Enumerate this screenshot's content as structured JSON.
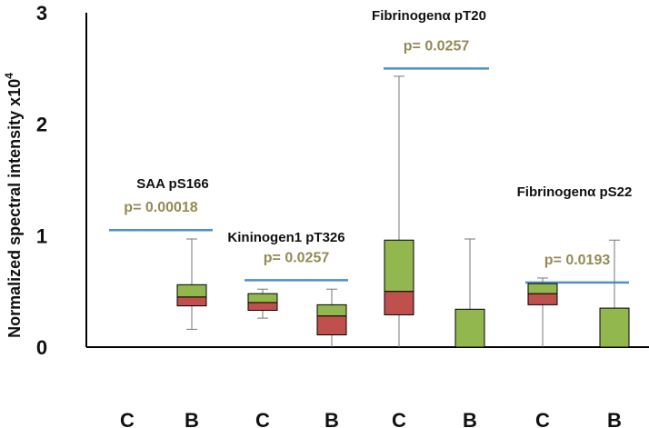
{
  "chart_data": {
    "type": "boxplot",
    "ylabel": "Normalized spectral intensity  x10",
    "ylabel_exponent": "4",
    "ylim": [
      0,
      3
    ],
    "yticks": [
      0,
      1,
      2,
      3
    ],
    "colors": {
      "upper_box": "#92b74f",
      "lower_box": "#c0504d",
      "pvalue_line": "#4f8fcf",
      "pvalue_text": "#948a54"
    },
    "groups": [
      {
        "label": "SAA pS166",
        "p_value": "p= 0.00018",
        "boxes": [
          {
            "category": "C",
            "min": 0,
            "q1": 0,
            "median": 0,
            "q3": 0,
            "max": 0
          },
          {
            "category": "B",
            "min": 0.16,
            "q1": 0.37,
            "median": 0.45,
            "q3": 0.56,
            "max": 0.97
          }
        ]
      },
      {
        "label": "Kininogen1 pT326",
        "p_value": "p= 0.0257",
        "boxes": [
          {
            "category": "C",
            "min": 0.26,
            "q1": 0.33,
            "median": 0.4,
            "q3": 0.48,
            "max": 0.52
          },
          {
            "category": "B",
            "min": 0,
            "q1": 0.11,
            "median": 0.28,
            "q3": 0.38,
            "max": 0.52
          }
        ]
      },
      {
        "label": "Fibrinogenα pT20",
        "p_value": "p= 0.0257",
        "boxes": [
          {
            "category": "C",
            "min": 0,
            "q1": 0.29,
            "median": 0.5,
            "q3": 0.96,
            "max": 2.43
          },
          {
            "category": "B",
            "min": 0,
            "q1": 0,
            "median": 0,
            "q3": 0.34,
            "max": 0.97
          }
        ]
      },
      {
        "label": "Fibrinogenα pS22",
        "p_value": "p= 0.0193",
        "boxes": [
          {
            "category": "C",
            "min": 0,
            "q1": 0.38,
            "median": 0.48,
            "q3": 0.57,
            "max": 0.62
          },
          {
            "category": "B",
            "min": 0,
            "q1": 0,
            "median": 0,
            "q3": 0.35,
            "max": 0.96
          }
        ]
      }
    ]
  }
}
